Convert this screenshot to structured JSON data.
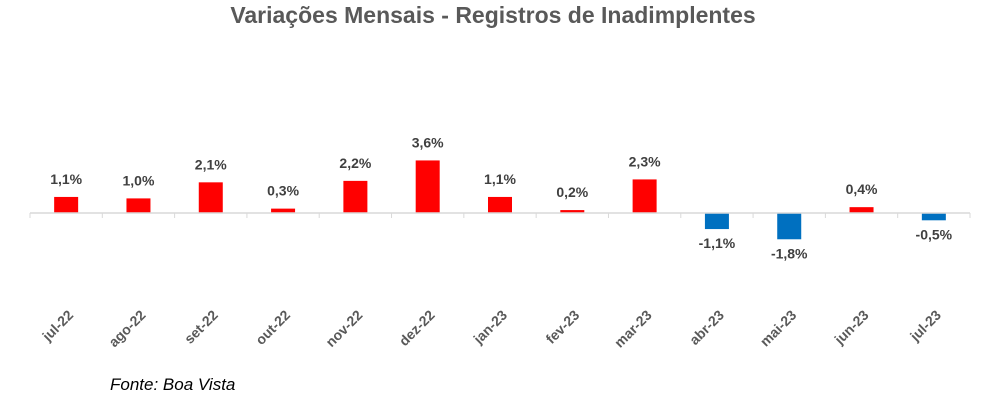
{
  "chart_data": {
    "type": "bar",
    "title": "Variações Mensais - Registros de Inadimplentes",
    "xlabel": "",
    "ylabel": "",
    "categories": [
      "jul-22",
      "ago-22",
      "set-22",
      "out-22",
      "nov-22",
      "dez-22",
      "jan-23",
      "fev-23",
      "mar-23",
      "abr-23",
      "mai-23",
      "jun-23",
      "jul-23"
    ],
    "values": [
      1.1,
      1.0,
      2.1,
      0.3,
      2.2,
      3.6,
      1.1,
      0.2,
      2.3,
      -1.1,
      -1.8,
      0.4,
      -0.5
    ],
    "data_labels": [
      "1,1%",
      "1,0%",
      "2,1%",
      "0,3%",
      "2,2%",
      "3,6%",
      "1,1%",
      "0,2%",
      "2,3%",
      "-1,1%",
      "-1,8%",
      "0,4%",
      "-0,5%"
    ],
    "ylim": [
      -5.5,
      3.6
    ],
    "grid": false,
    "legend": "none",
    "colors": {
      "positive": "#ff0000",
      "negative": "#0070c0",
      "axis": "#d9d9d9"
    }
  },
  "source_note": "Fonte: Boa Vista"
}
